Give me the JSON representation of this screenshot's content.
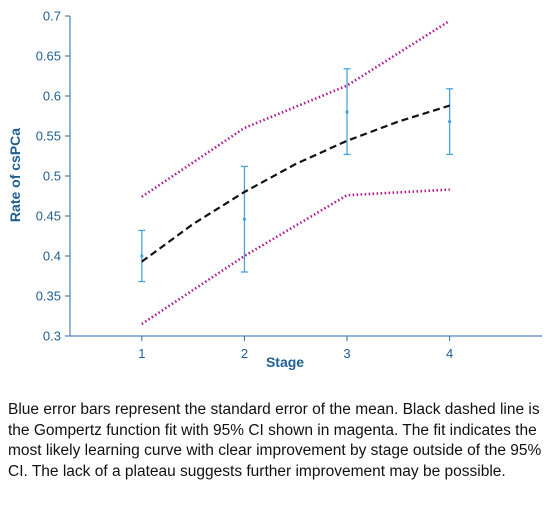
{
  "chart_data": {
    "type": "line",
    "xlabel": "Stage",
    "ylabel": "Rate of csPCa",
    "xlim": [
      0.3,
      4.9
    ],
    "ylim": [
      0.3,
      0.7
    ],
    "xticks": [
      1,
      2,
      3,
      4
    ],
    "yticks": [
      0.3,
      0.35,
      0.4,
      0.45,
      0.5,
      0.55,
      0.6,
      0.65,
      0.7
    ],
    "ytick_labels": [
      "0.3",
      "0.35",
      "0.4",
      "0.45",
      "0.5",
      "0.55",
      "0.6",
      "0.65",
      "0.7"
    ],
    "grid": false,
    "series": [
      {
        "kind": "errorbar",
        "color": "#4aa3df",
        "x": [
          1,
          2,
          3,
          4
        ],
        "mean": [
          0.4,
          0.446,
          0.58,
          0.568
        ],
        "lower": [
          0.368,
          0.38,
          0.527,
          0.527
        ],
        "upper": [
          0.432,
          0.512,
          0.634,
          0.609
        ]
      },
      {
        "kind": "fit",
        "style": "dashed",
        "color": "#111111",
        "x": [
          1.0,
          1.5,
          2.0,
          2.5,
          3.0,
          3.5,
          4.0
        ],
        "y": [
          0.393,
          0.44,
          0.48,
          0.515,
          0.544,
          0.568,
          0.588
        ]
      },
      {
        "kind": "ci-upper",
        "style": "dotted",
        "color": "#b0178d",
        "x": [
          1,
          2,
          3,
          4
        ],
        "y": [
          0.474,
          0.56,
          0.613,
          0.694
        ]
      },
      {
        "kind": "ci-lower",
        "style": "dotted",
        "color": "#b0178d",
        "x": [
          1,
          2,
          3,
          4
        ],
        "y": [
          0.315,
          0.4,
          0.476,
          0.483
        ]
      }
    ]
  },
  "caption": "Blue error bars represent the standard error of the mean. Black dashed line is the Gompertz function fit with 95% CI shown in magenta. The fit indicates the most likely learning curve with clear improvement by stage outside of the 95% CI. The lack of a plateau suggests further improvement may be possible.",
  "colors": {
    "axis": "#2a6ea6",
    "label": "#1f5f93",
    "errorbar": "#4aa3df",
    "fit": "#111111",
    "ci": "#b0178d"
  }
}
